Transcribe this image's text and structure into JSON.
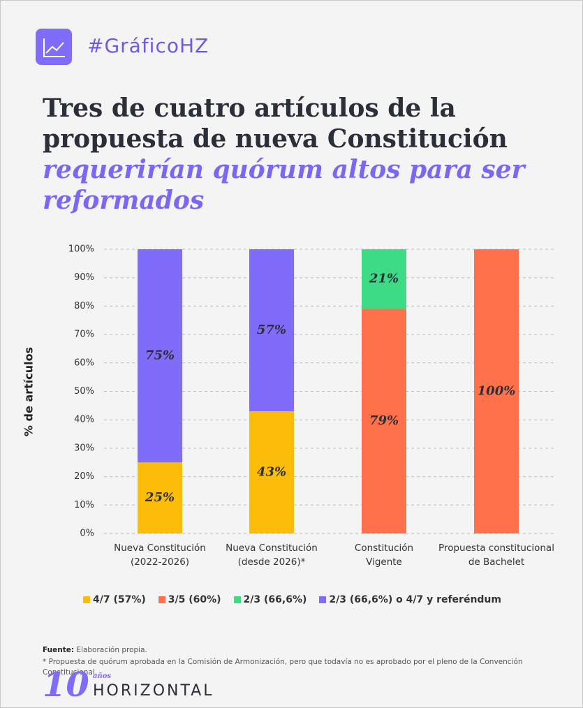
{
  "header": {
    "tag": "#GráficoHZ",
    "title": "Tres de cuatro artículos de la propuesta de nueva Constitución",
    "title_highlight": "requerirían quórum altos para ser reformados"
  },
  "chart_data": {
    "type": "stacked_bar",
    "ylabel": "% de artículos",
    "categories": [
      "Nueva Constitución\n(2022-2026)",
      "Nueva Constitución\n(desde 2026)*",
      "Constitución\nVigente",
      "Propuesta constitucional\nde Bachelet"
    ],
    "series": [
      {
        "name": "4/7 (57%)",
        "color": "#fbbc0a",
        "values": [
          25,
          43,
          0,
          0
        ],
        "value_labels": [
          "25%",
          "43%",
          null,
          null
        ]
      },
      {
        "name": "3/5 (60%)",
        "color": "#ff714a",
        "values": [
          0,
          0,
          79,
          100
        ],
        "value_labels": [
          null,
          null,
          "79%",
          "100%"
        ]
      },
      {
        "name": "2/3 (66,6%)",
        "color": "#3ddc84",
        "values": [
          0,
          0,
          21,
          0
        ],
        "value_labels": [
          null,
          null,
          "21%",
          null
        ]
      },
      {
        "name": "2/3 (66,6%) o 4/7 y referéndum",
        "color": "#7f6cf8",
        "values": [
          75,
          57,
          0,
          0
        ],
        "value_labels": [
          "75%",
          "57%",
          null,
          null
        ]
      }
    ],
    "ylim": [
      0,
      100
    ],
    "yticks": [
      {
        "value": 0,
        "label": "0%"
      },
      {
        "value": 10,
        "label": "10%"
      },
      {
        "value": 20,
        "label": "20%"
      },
      {
        "value": 30,
        "label": "30%"
      },
      {
        "value": 40,
        "label": "40%"
      },
      {
        "value": 50,
        "label": "50%"
      },
      {
        "value": 60,
        "label": "60%"
      },
      {
        "value": 70,
        "label": "70%"
      },
      {
        "value": 80,
        "label": "80%"
      },
      {
        "value": 90,
        "label": "90%"
      },
      {
        "value": 100,
        "label": "100%"
      }
    ],
    "grid": true
  },
  "footer": {
    "source_label": "Fuente:",
    "source": "Elaboración propia.",
    "note": "* Propuesta de quórum aprobada en la Comisión de Armonización, pero que todavía no es aprobado por el pleno de la Convención Constitucional.",
    "logo_number": "10",
    "logo_years": "años",
    "logo_name": "HORIZONTAL"
  }
}
